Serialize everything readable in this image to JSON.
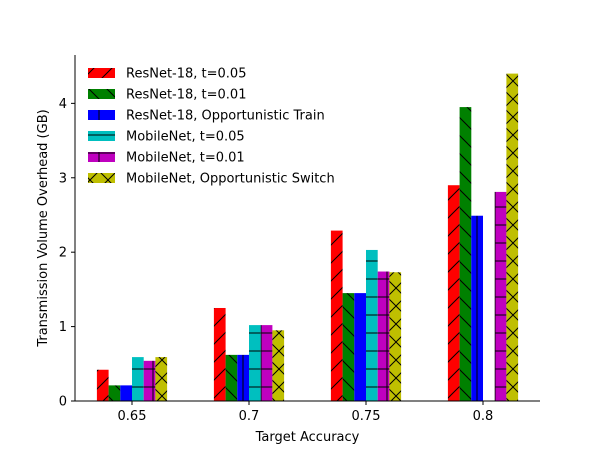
{
  "chart_data": {
    "type": "bar",
    "xlabel": "Target Accuracy",
    "ylabel": "Transmission Volume Overhead (GB)",
    "categories": [
      "0.65",
      "0.7",
      "0.75",
      "0.8"
    ],
    "ylim": [
      0,
      4.65
    ],
    "yticks": [
      0,
      1,
      2,
      3,
      4
    ],
    "grid": false,
    "legend_position": "top-left",
    "series": [
      {
        "name": "ResNet-18, t=0.05",
        "color": "#ff0000",
        "hatch": "forward-slash",
        "values": [
          0.42,
          1.25,
          2.29,
          2.9
        ]
      },
      {
        "name": "ResNet-18, t=0.01",
        "color": "#008000",
        "hatch": "back-slash",
        "values": [
          0.21,
          0.62,
          1.45,
          3.95
        ]
      },
      {
        "name": "ResNet-18, Opportunistic Train",
        "color": "#0000ff",
        "hatch": "vertical",
        "values": [
          0.21,
          0.62,
          1.45,
          2.49
        ]
      },
      {
        "name": "MobileNet, t=0.05",
        "color": "#00bfbf",
        "hatch": "horizontal",
        "values": [
          0.59,
          1.02,
          2.03,
          0
        ]
      },
      {
        "name": "MobileNet, t=0.01",
        "color": "#bf00bf",
        "hatch": "plus",
        "values": [
          0.54,
          1.02,
          1.74,
          2.81
        ]
      },
      {
        "name": "MobileNet, Opportunistic Switch",
        "color": "#bfbf00",
        "hatch": "cross",
        "values": [
          0.59,
          0.95,
          1.73,
          4.4
        ]
      }
    ]
  }
}
